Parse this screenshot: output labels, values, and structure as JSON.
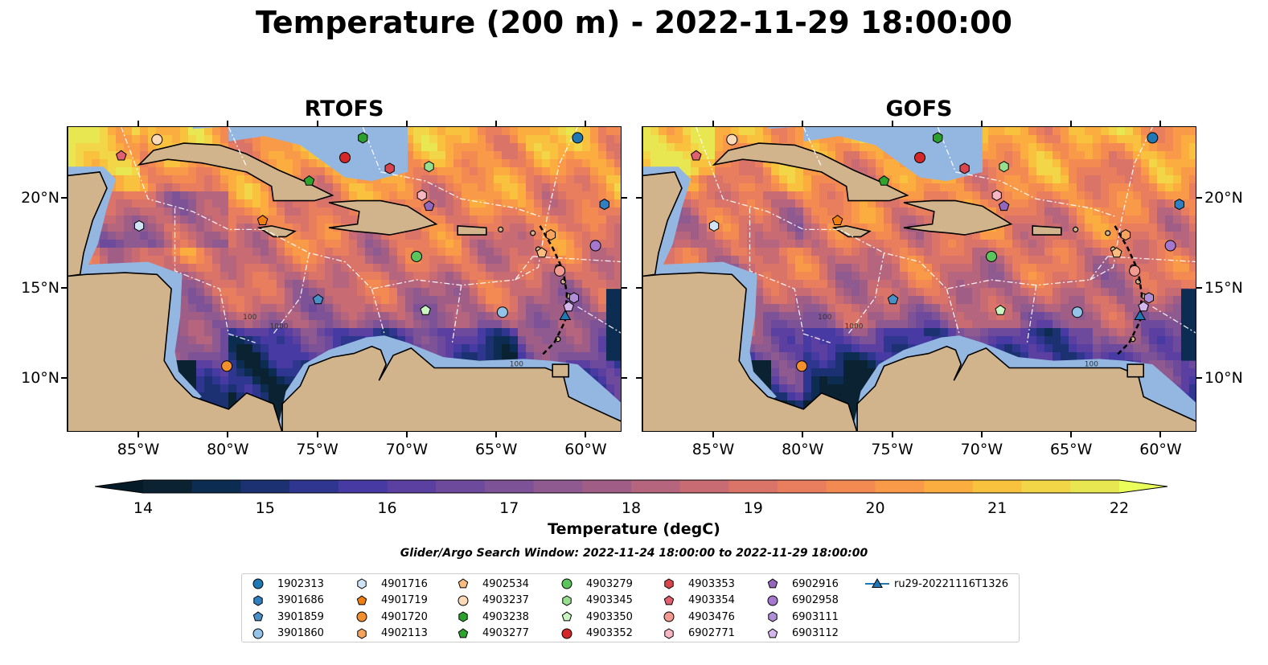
{
  "title": "Temperature (200 m) - 2022-11-29 18:00:00",
  "panels": [
    {
      "title": "RTOFS"
    },
    {
      "title": "GOFS"
    }
  ],
  "map_extent": {
    "lon_min": -89,
    "lon_max": -58,
    "lat_min": 7,
    "lat_max": 24
  },
  "x_ticks": [
    {
      "lon": -85,
      "label": "85°W"
    },
    {
      "lon": -80,
      "label": "80°W"
    },
    {
      "lon": -75,
      "label": "75°W"
    },
    {
      "lon": -70,
      "label": "70°W"
    },
    {
      "lon": -65,
      "label": "65°W"
    },
    {
      "lon": -60,
      "label": "60°W"
    }
  ],
  "y_ticks": [
    {
      "lat": 20,
      "label": "20°N"
    },
    {
      "lat": 15,
      "label": "15°N"
    },
    {
      "lat": 10,
      "label": "10°N"
    }
  ],
  "contour_labels": [
    "100",
    "1000",
    "100"
  ],
  "colorbar": {
    "title": "Temperature (degC)",
    "min": 14,
    "max": 22,
    "step": 0.5,
    "ticks": [
      "14",
      "15",
      "16",
      "17",
      "18",
      "19",
      "20",
      "21",
      "22"
    ],
    "colors": [
      "#0b2233",
      "#0d2c52",
      "#1c3172",
      "#2f3690",
      "#473aa3",
      "#5b40a2",
      "#6e4a9c",
      "#7e5296",
      "#8e5a8f",
      "#a05e86",
      "#b5657d",
      "#c96b72",
      "#db7468",
      "#e97e5e",
      "#f38a52",
      "#f89a47",
      "#fbad40",
      "#f9c23e",
      "#f3d548",
      "#e9e751"
    ],
    "extend_low": "#061b28",
    "extend_high": "#eaff5a"
  },
  "search_window": "Glider/Argo Search Window: 2022-11-24 18:00:00 to 2022-11-29 18:00:00",
  "colors": {
    "land": "#d2b48c",
    "shelf": "#94b7e2",
    "coastline": "#000000",
    "eez": "#ffffff"
  },
  "platforms": [
    {
      "id": "1902313",
      "marker": "circle",
      "color": "#1f77b4",
      "lon": -60.5,
      "lat": 23.4
    },
    {
      "id": "3901686",
      "marker": "hexagon",
      "color": "#2f7fc1",
      "lon": -59.0,
      "lat": 19.7
    },
    {
      "id": "3901859",
      "marker": "pentagon",
      "color": "#4a90c8",
      "lon": -75.0,
      "lat": 14.4
    },
    {
      "id": "3901860",
      "marker": "circle",
      "color": "#93c4e8",
      "lon": -64.7,
      "lat": 13.7
    },
    {
      "id": "4901716",
      "marker": "hexagon",
      "color": "#cfe5f7",
      "lon": -85.0,
      "lat": 18.5
    },
    {
      "id": "4901719",
      "marker": "pentagon",
      "color": "#f07f12",
      "lon": -78.1,
      "lat": 18.8
    },
    {
      "id": "4901720",
      "marker": "circle",
      "color": "#f3902e",
      "lon": -80.1,
      "lat": 10.7
    },
    {
      "id": "4902113",
      "marker": "hexagon",
      "color": "#f6a45c",
      "lon": -62.0,
      "lat": 18.0
    },
    {
      "id": "4902534",
      "marker": "pentagon",
      "color": "#f8bc7e",
      "lon": -62.5,
      "lat": 17.0
    },
    {
      "id": "4903237",
      "marker": "circle",
      "color": "#fcd9b7",
      "lon": -84.0,
      "lat": 23.3
    },
    {
      "id": "4903238",
      "marker": "hexagon",
      "color": "#2ca02c",
      "lon": -72.5,
      "lat": 23.4
    },
    {
      "id": "4903277",
      "marker": "pentagon",
      "color": "#2ea32e",
      "lon": -75.5,
      "lat": 21.0
    },
    {
      "id": "4903279",
      "marker": "circle",
      "color": "#5cc45c",
      "lon": -69.5,
      "lat": 16.8
    },
    {
      "id": "4903345",
      "marker": "hexagon",
      "color": "#97df8e",
      "lon": -68.8,
      "lat": 21.8
    },
    {
      "id": "4903350",
      "marker": "pentagon",
      "color": "#c8f5c0",
      "lon": -69.0,
      "lat": 13.8
    },
    {
      "id": "4903352",
      "marker": "circle",
      "color": "#d62728",
      "lon": -73.5,
      "lat": 22.3
    },
    {
      "id": "4903353",
      "marker": "hexagon",
      "color": "#d9454c",
      "lon": -71.0,
      "lat": 21.7
    },
    {
      "id": "4903354",
      "marker": "pentagon",
      "color": "#e06070",
      "lon": -86.0,
      "lat": 22.4
    },
    {
      "id": "4903476",
      "marker": "circle",
      "color": "#f29a8f",
      "lon": -61.5,
      "lat": 16.0
    },
    {
      "id": "6902771",
      "marker": "hexagon",
      "color": "#f7b6c2",
      "lon": -69.2,
      "lat": 20.2
    },
    {
      "id": "6902916",
      "marker": "pentagon",
      "color": "#9467bd",
      "lon": -68.8,
      "lat": 19.6
    },
    {
      "id": "6902958",
      "marker": "circle",
      "color": "#a577cf",
      "lon": -59.5,
      "lat": 17.4
    },
    {
      "id": "6903111",
      "marker": "hexagon",
      "color": "#b08fd6",
      "lon": -60.7,
      "lat": 14.5
    },
    {
      "id": "6903112",
      "marker": "pentagon",
      "color": "#d2b6ec",
      "lon": -61.0,
      "lat": 14.0
    },
    {
      "id": "ru29-20221116T1326",
      "marker": "triangle",
      "color": "#1f77b4",
      "lon": -61.2,
      "lat": 13.5
    }
  ]
}
